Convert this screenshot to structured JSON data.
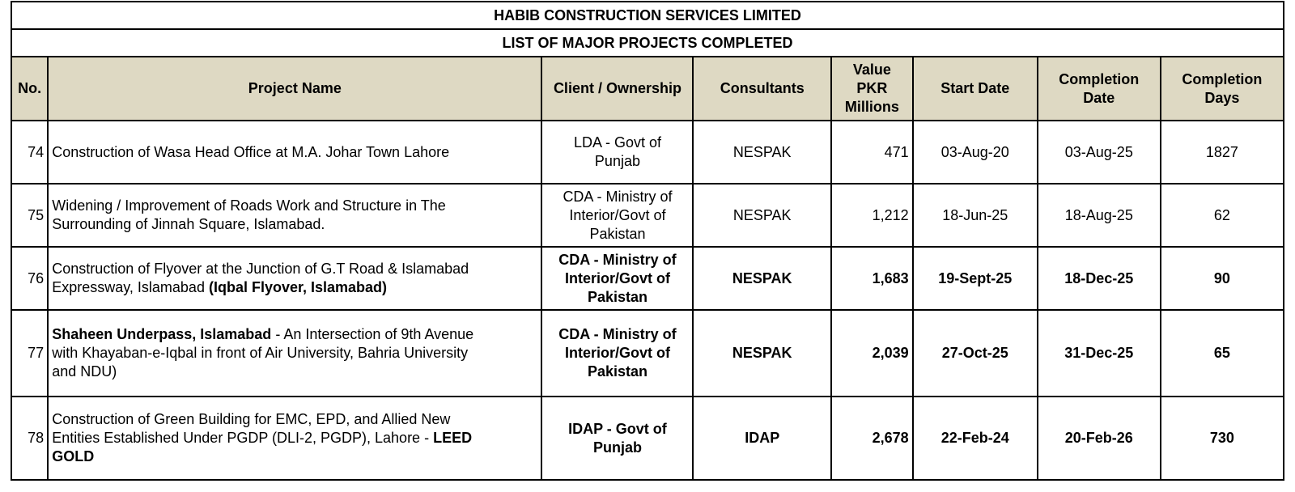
{
  "company": "HABIB CONSTRUCTION SERVICES LIMITED",
  "list_title": "LIST OF MAJOR PROJECTS COMPLETED",
  "headers": {
    "no": "No.",
    "project": "Project Name",
    "client": "Client / Ownership",
    "consultants": "Consultants",
    "value_1": "Value",
    "value_2": "PKR",
    "value_3": "Millions",
    "start": "Start Date",
    "completion_date_1": "Completion",
    "completion_date_2": "Date",
    "completion_days_1": "Completion",
    "completion_days_2": "Days"
  },
  "rows": [
    {
      "no": "74",
      "project_a": "Construction of Wasa Head Office at M.A. Johar Town Lahore",
      "client_1": "LDA - Govt of",
      "client_2": "Punjab",
      "consultant": "NESPAK",
      "value": "471",
      "start": "03-Aug-20",
      "completion": "03-Aug-25",
      "days": "1827"
    },
    {
      "no": "75",
      "project_a": "Widening / Improvement of Roads Work and Structure in The",
      "project_b": "Surrounding of Jinnah Square, Islamabad.",
      "client_1": "CDA - Ministry of",
      "client_2": "Interior/Govt of",
      "client_3": "Pakistan",
      "consultant": "NESPAK",
      "value": "1,212",
      "start": "18-Jun-25",
      "completion": "18-Aug-25",
      "days": "62"
    },
    {
      "no": "76",
      "project_a": "Construction of Flyover at the Junction of G.T Road & Islamabad",
      "project_b": "Expressway, Islamabad",
      "project_bold": "(Iqbal Flyover, Islamabad)",
      "client_1": "CDA - Ministry of",
      "client_2": "Interior/Govt of",
      "client_3": "Pakistan",
      "consultant": "NESPAK",
      "value": "1,683",
      "start": "19-Sept-25",
      "completion": "18-Dec-25",
      "days": "90"
    },
    {
      "no": "77",
      "project_bold": "Shaheen Underpass, Islamabad",
      "project_a": "- An Intersection of 9th Avenue",
      "project_b": "with Khayaban-e-Iqbal in front of Air University, Bahria University",
      "project_c": "and NDU)",
      "client_1": "CDA - Ministry of",
      "client_2": "Interior/Govt of",
      "client_3": "Pakistan",
      "consultant": "NESPAK",
      "value": "2,039",
      "start": "27-Oct-25",
      "completion": "31-Dec-25",
      "days": "65"
    },
    {
      "no": "78",
      "project_a": "Construction of Green Building for EMC, EPD, and Allied New",
      "project_b": "Entities Established Under PGDP (DLI-2, PGDP), Lahore -",
      "project_bold": "LEED",
      "project_bold_2": "GOLD",
      "client_1": "IDAP - Govt of",
      "client_2": "Punjab",
      "consultant": "IDAP",
      "value": "2,678",
      "start": "22-Feb-24",
      "completion": "20-Feb-26",
      "days": "730"
    }
  ]
}
